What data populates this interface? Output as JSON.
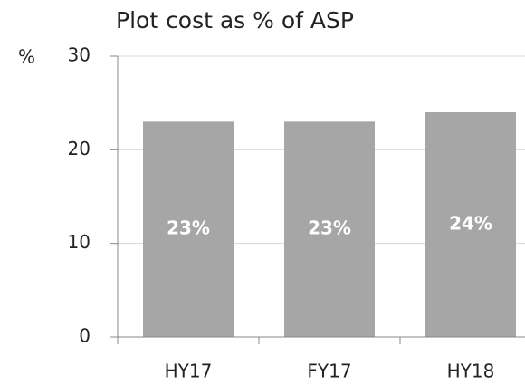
{
  "chart_data": {
    "type": "bar",
    "title": "Plot cost as % of ASP",
    "y_label": "%",
    "categories": [
      "HY17",
      "FY17",
      "HY18"
    ],
    "values": [
      23,
      23,
      24
    ],
    "value_labels": [
      "23%",
      "23%",
      "24%"
    ],
    "color": "#a6a6a6",
    "ylim": [
      0,
      30
    ],
    "yticks": [
      0,
      10,
      20,
      30
    ],
    "grid": true
  }
}
